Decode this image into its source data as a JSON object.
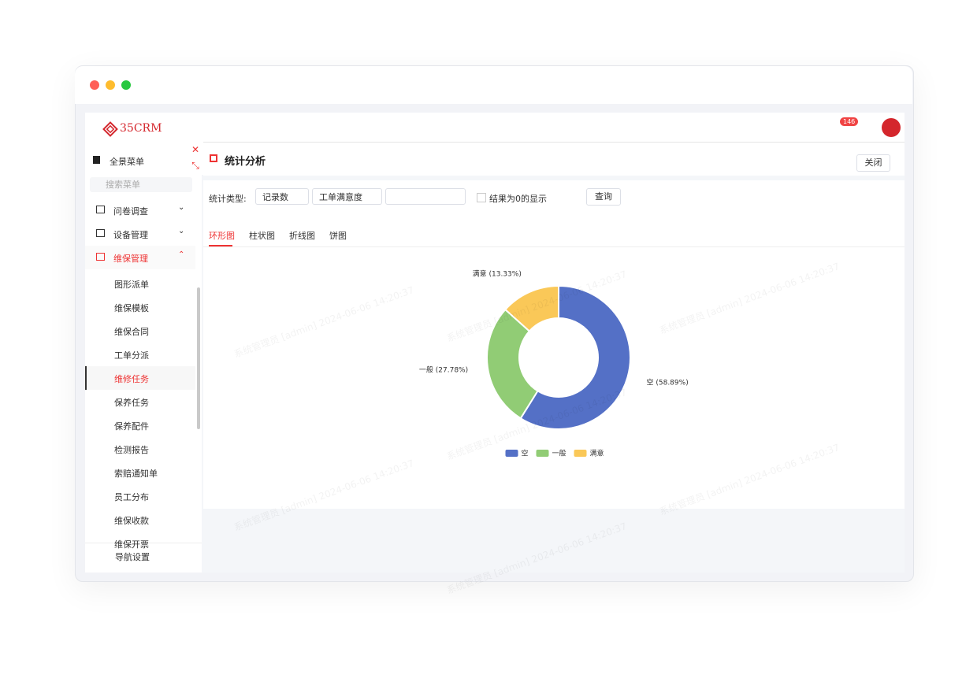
{
  "header": {
    "logo": "35CRM",
    "badge": "146"
  },
  "sidebar": {
    "all_menu": "全景菜单",
    "search_placeholder": "搜索菜单",
    "groups": [
      "问卷调查",
      "设备管理",
      "维保管理"
    ],
    "active_group": 2,
    "items": [
      "图形派单",
      "维保模板",
      "维保合同",
      "工单分派",
      "维修任务",
      "保养任务",
      "保养配件",
      "检测报告",
      "索赔通知单",
      "员工分布",
      "维保收款",
      "维保开票"
    ],
    "active_item": 4,
    "footer": "导航设置"
  },
  "panel": {
    "title": "统计分析",
    "close": "关闭",
    "filter_label": "统计类型:",
    "selects": [
      "记录数",
      "工单满意度"
    ],
    "checkbox": "结果为0的显示",
    "query": "查询",
    "tabs": [
      "环形图",
      "柱状图",
      "折线图",
      "饼图"
    ],
    "active_tab": 0
  },
  "watermark": "系统管理员 [admin] 2024-06-06 14:20:37",
  "chart_data": {
    "type": "donut",
    "categories": [
      "空",
      "一般",
      "满意"
    ],
    "values": [
      58.89,
      27.78,
      13.33
    ],
    "value_labels": [
      "空 (58.89%)",
      "一般 (27.78%)",
      "满意 (13.33%)"
    ],
    "colors": [
      "#5470c6",
      "#91cc75",
      "#fac858"
    ],
    "legend": "bottom"
  }
}
